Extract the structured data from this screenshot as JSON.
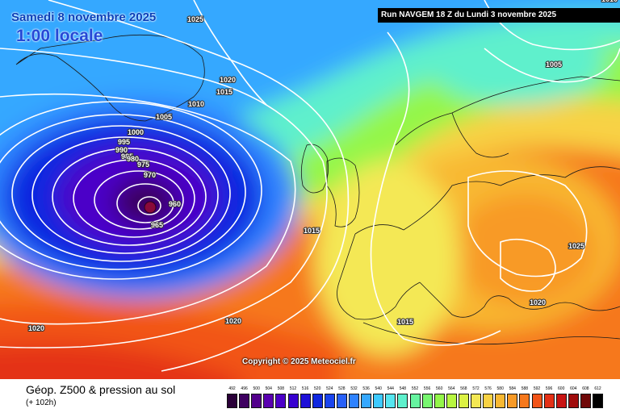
{
  "map": {
    "date": "Samedi 8 novembre 2025",
    "local_time": "1:00 locale",
    "run_info": "Run NAVGEM 18 Z du Lundi 3 novembre 2025",
    "copyright": "Copyright © 2025 Meteociel.fr",
    "isobar_labels": [
      "1025",
      "1020",
      "1015",
      "1010",
      "1005",
      "1000",
      "995",
      "990",
      "985",
      "980",
      "975",
      "970",
      "965",
      "960",
      "1015",
      "1025",
      "1005",
      "1020",
      "1015",
      "1020",
      "1020",
      "1010"
    ]
  },
  "footer": {
    "product_title": "Géop. Z500 & pression au sol",
    "forecast_hours": "(+ 102h)"
  },
  "legend": {
    "labels": [
      "492",
      "496",
      "500",
      "504",
      "508",
      "512",
      "516",
      "520",
      "524",
      "528",
      "532",
      "536",
      "540",
      "544",
      "548",
      "552",
      "556",
      "560",
      "564",
      "568",
      "572",
      "576",
      "580",
      "584",
      "588",
      "592",
      "596",
      "600",
      "604",
      "608",
      "612"
    ],
    "colors": [
      "#2a0038",
      "#3e0060",
      "#53008c",
      "#5a00b0",
      "#4c00c8",
      "#3800d0",
      "#1e10d8",
      "#1028e0",
      "#1a44ee",
      "#2860f8",
      "#2e82ff",
      "#36a8ff",
      "#3ecaff",
      "#56e6f0",
      "#5ef0cc",
      "#66f4a0",
      "#78f670",
      "#94f64a",
      "#b8f640",
      "#dcf244",
      "#f4e854",
      "#f8d244",
      "#f8b832",
      "#f89a26",
      "#f6781c",
      "#f25418",
      "#e43016",
      "#c81412",
      "#a00c0c",
      "#700808",
      "#000000"
    ]
  }
}
